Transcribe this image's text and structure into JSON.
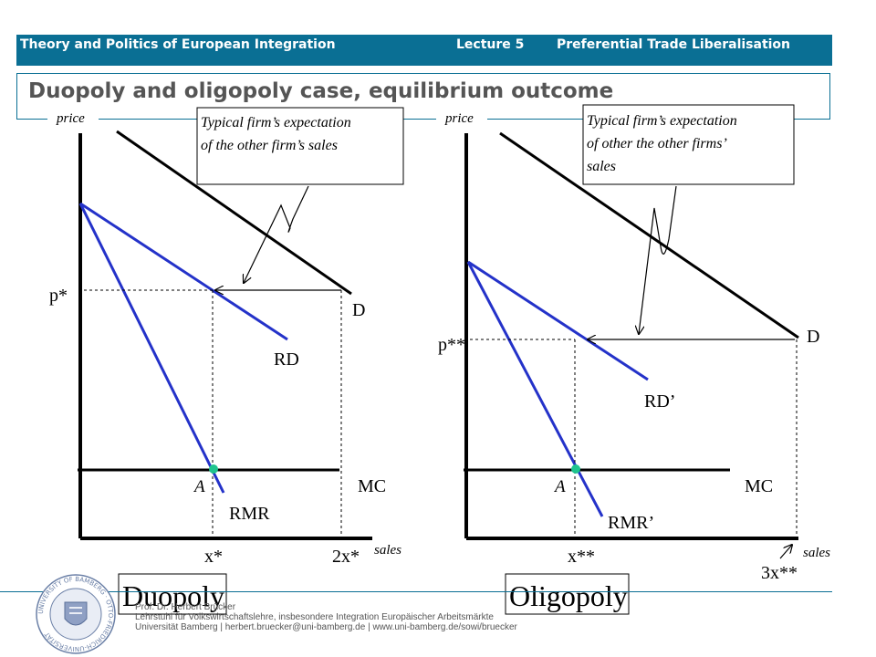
{
  "header": {
    "course": "Theory and Politics of European Integration",
    "lecture": "Lecture 5",
    "topic": "Preferential Trade Liberalisation"
  },
  "slide_title": "Duopoly and oligopoly case, equilibrium outcome",
  "colors": {
    "accent": "#0a6f94",
    "blue_curves": "#2432c9",
    "equilibrium_dot": "#1fc48e"
  },
  "left_panel": {
    "y_axis_label": "price",
    "x_axis_label": "sales",
    "callout": "Typical firm’s expectation of the other firm’s sales",
    "demand_label": "D",
    "residual_demand_label": "RD",
    "residual_mr_label": "RMR",
    "mc_label": "MC",
    "equilibrium_label": "A",
    "price_label": "p*",
    "qty_label": "x*",
    "total_qty_label": "2x*",
    "caption": "Duopoly"
  },
  "right_panel": {
    "y_axis_label": "price",
    "x_axis_label": "sales",
    "callout": "Typical firm’s expectation of other the other firms’ sales",
    "demand_label": "D",
    "residual_demand_label": "RD’",
    "residual_mr_label": "RMR’",
    "mc_label": "MC",
    "equilibrium_label": "A",
    "price_label": "p**",
    "qty_label": "x**",
    "total_qty_label": "3x**",
    "caption": "Oligopoly"
  },
  "footer": {
    "line1": "Prof. Dr. Herbert Brücker",
    "line2": "Lehrstuhl für Volkswirtschaftslehre, insbesondere Integration Europäischer Arbeitsmärkte",
    "line3": "Universität Bamberg | herbert.bruecker@uni-bamberg.de | www.uni-bamberg.de/sowi/bruecker"
  },
  "seal_text": "UNIVERSITY OF BAMBERG · OTTO-FRIEDRICH-UNIVERSITÄT"
}
